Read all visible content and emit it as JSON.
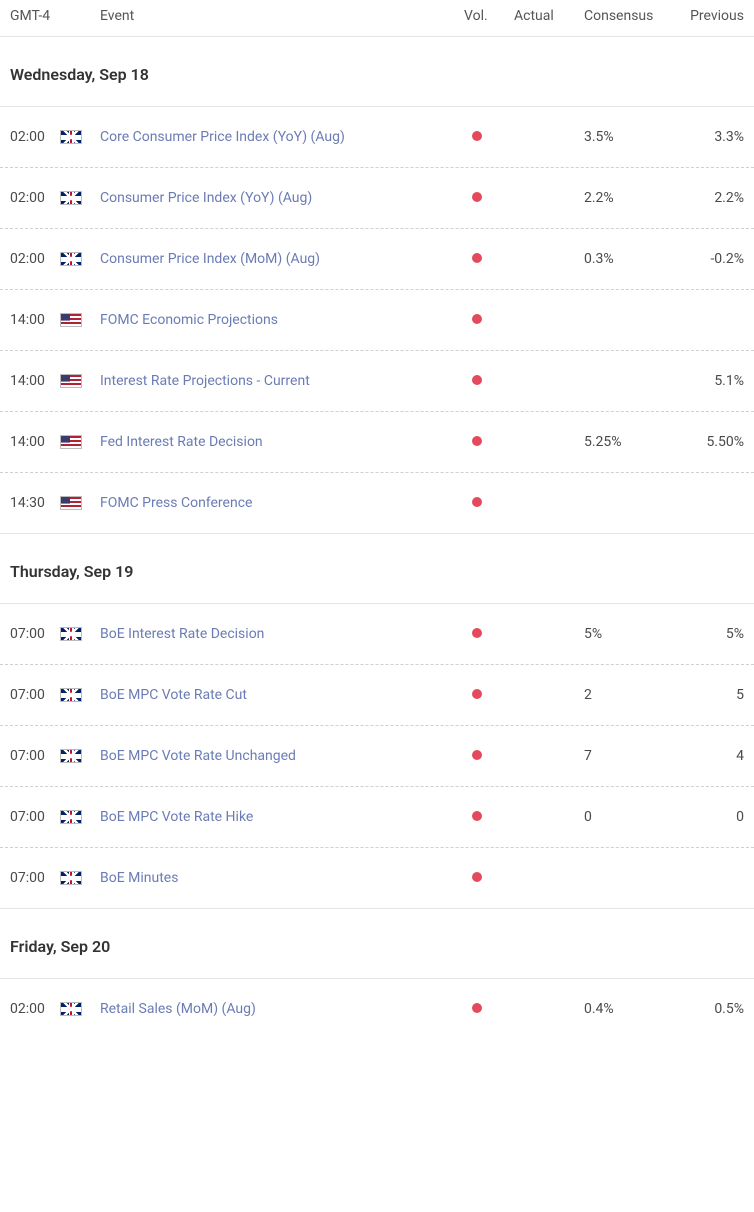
{
  "header": {
    "time": "GMT-4",
    "event": "Event",
    "vol": "Vol.",
    "actual": "Actual",
    "consensus": "Consensus",
    "previous": "Previous"
  },
  "vol_dot_color": "#e34b5c",
  "event_link_color": "#6b7cb5",
  "days": [
    {
      "label": "Wednesday, Sep 18",
      "events": [
        {
          "time": "02:00",
          "flag": "uk",
          "name": "Core Consumer Price Index (YoY) (Aug)",
          "actual": "",
          "consensus": "3.5%",
          "previous": "3.3%"
        },
        {
          "time": "02:00",
          "flag": "uk",
          "name": "Consumer Price Index (YoY) (Aug)",
          "actual": "",
          "consensus": "2.2%",
          "previous": "2.2%"
        },
        {
          "time": "02:00",
          "flag": "uk",
          "name": "Consumer Price Index (MoM) (Aug)",
          "actual": "",
          "consensus": "0.3%",
          "previous": "-0.2%"
        },
        {
          "time": "14:00",
          "flag": "us",
          "name": "FOMC Economic Projections",
          "actual": "",
          "consensus": "",
          "previous": ""
        },
        {
          "time": "14:00",
          "flag": "us",
          "name": "Interest Rate Projections - Current",
          "actual": "",
          "consensus": "",
          "previous": "5.1%"
        },
        {
          "time": "14:00",
          "flag": "us",
          "name": "Fed Interest Rate Decision",
          "actual": "",
          "consensus": "5.25%",
          "previous": "5.50%"
        },
        {
          "time": "14:30",
          "flag": "us",
          "name": "FOMC Press Conference",
          "actual": "",
          "consensus": "",
          "previous": ""
        }
      ]
    },
    {
      "label": "Thursday, Sep 19",
      "events": [
        {
          "time": "07:00",
          "flag": "uk",
          "name": "BoE Interest Rate Decision",
          "actual": "",
          "consensus": "5%",
          "previous": "5%"
        },
        {
          "time": "07:00",
          "flag": "uk",
          "name": "BoE MPC Vote Rate Cut",
          "actual": "",
          "consensus": "2",
          "previous": "5"
        },
        {
          "time": "07:00",
          "flag": "uk",
          "name": "BoE MPC Vote Rate Unchanged",
          "actual": "",
          "consensus": "7",
          "previous": "4"
        },
        {
          "time": "07:00",
          "flag": "uk",
          "name": "BoE MPC Vote Rate Hike",
          "actual": "",
          "consensus": "0",
          "previous": "0"
        },
        {
          "time": "07:00",
          "flag": "uk",
          "name": "BoE Minutes",
          "actual": "",
          "consensus": "",
          "previous": ""
        }
      ]
    },
    {
      "label": "Friday, Sep 20",
      "events": [
        {
          "time": "02:00",
          "flag": "uk",
          "name": "Retail Sales (MoM) (Aug)",
          "actual": "",
          "consensus": "0.4%",
          "previous": "0.5%"
        }
      ]
    }
  ]
}
